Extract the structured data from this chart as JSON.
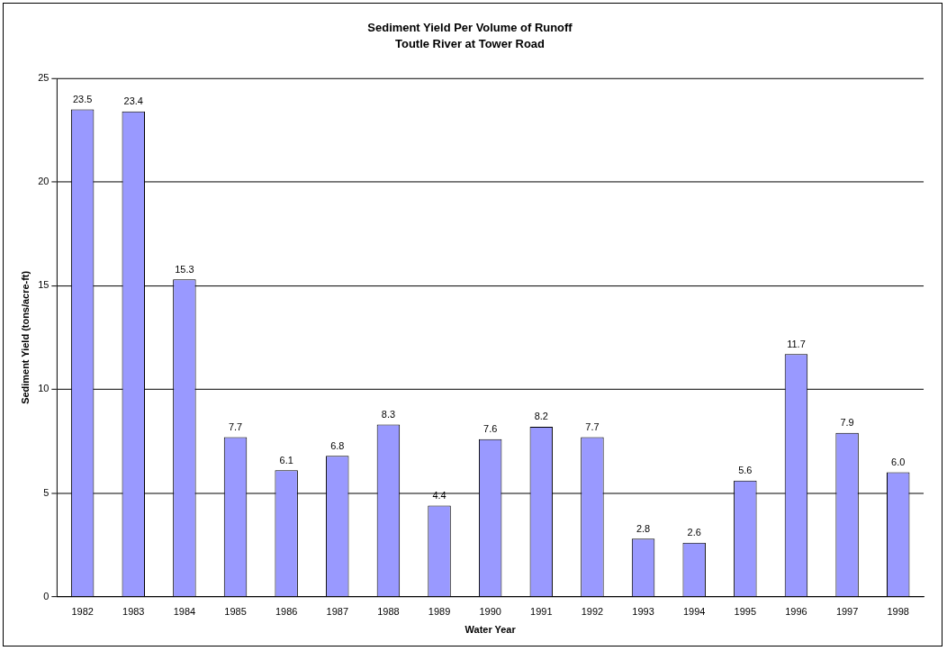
{
  "chart_data": {
    "type": "bar",
    "title": "Sediment Yield Per Volume of Runoff",
    "subtitle": "Toutle River at Tower Road",
    "xlabel": "Water Year",
    "ylabel": "Sediment Yield (tons/acre-ft)",
    "categories": [
      "1982",
      "1983",
      "1984",
      "1985",
      "1986",
      "1987",
      "1988",
      "1989",
      "1990",
      "1991",
      "1992",
      "1993",
      "1994",
      "1995",
      "1996",
      "1997",
      "1998"
    ],
    "values": [
      23.5,
      23.4,
      15.3,
      7.7,
      6.1,
      6.8,
      8.3,
      4.4,
      7.6,
      8.2,
      7.7,
      2.8,
      2.6,
      5.6,
      11.7,
      7.9,
      6.0
    ],
    "value_labels": [
      "23.5",
      "23.4",
      "15.3",
      "7.7",
      "6.1",
      "6.8",
      "8.3",
      "4.4",
      "7.6",
      "8.2",
      "7.7",
      "2.8",
      "2.6",
      "5.6",
      "11.7",
      "7.9",
      "6.0"
    ],
    "color": "#9999ff",
    "ylim": [
      0,
      25
    ],
    "yticks": [
      0,
      5,
      10,
      15,
      20,
      25
    ],
    "grid": "y",
    "legend": false
  }
}
